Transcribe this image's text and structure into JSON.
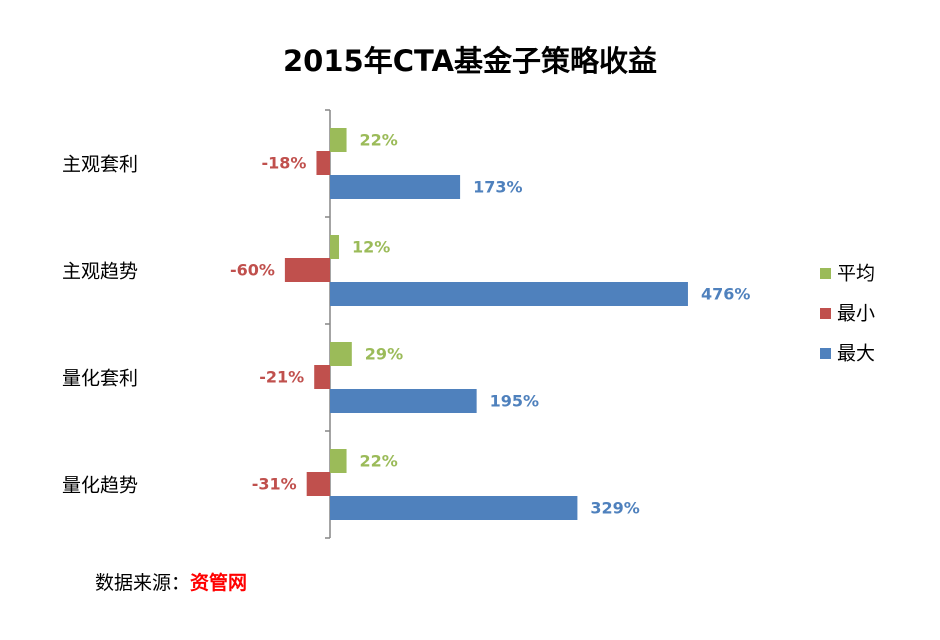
{
  "title": "2015年CTA基金子策略收益",
  "source": {
    "label": "数据来源：",
    "name": "资管网"
  },
  "chart_data": {
    "type": "bar",
    "orientation": "horizontal",
    "title": "2015年CTA基金子策略收益",
    "categories": [
      "主观套利",
      "主观趋势",
      "量化套利",
      "量化趋势"
    ],
    "series": [
      {
        "name": "平均",
        "color": "#9bbb59",
        "values": [
          22,
          12,
          29,
          22
        ],
        "labels": [
          "22%",
          "12%",
          "29%",
          "22%"
        ]
      },
      {
        "name": "最小",
        "color": "#c0504d",
        "values": [
          -18,
          -60,
          -21,
          -31
        ],
        "labels": [
          "-18%",
          "-60%",
          "-21%",
          "-31%"
        ]
      },
      {
        "name": "最大",
        "color": "#4f81bd",
        "values": [
          173,
          476,
          195,
          329
        ],
        "labels": [
          "173%",
          "476%",
          "195%",
          "329%"
        ]
      }
    ],
    "xlim": [
      -100,
      500
    ],
    "unit": "%",
    "grid": false,
    "legend": "right"
  }
}
